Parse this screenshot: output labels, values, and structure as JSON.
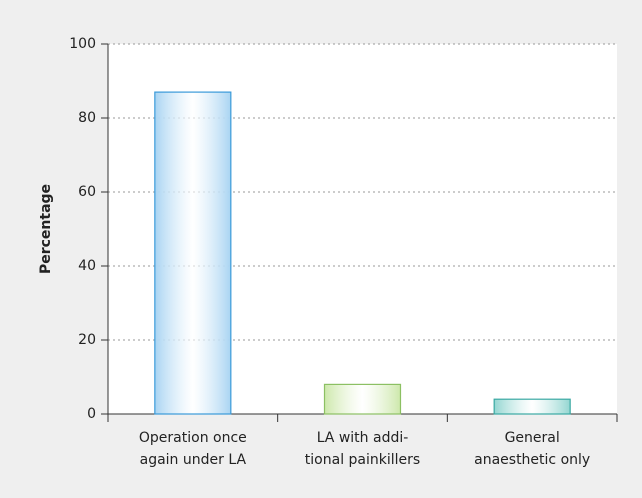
{
  "chart_data": {
    "type": "bar",
    "y_label": "Percentage",
    "categories": [
      [
        "Operation once",
        "again under LA"
      ],
      [
        "LA with addi-",
        "tional painkillers"
      ],
      [
        "General",
        "anaesthetic only"
      ]
    ],
    "values": [
      87,
      8,
      4
    ],
    "colors": [
      "#a9d4f2",
      "#cde8ab",
      "#93d6d1"
    ],
    "edge_colors": [
      "#3a9ad9",
      "#8cc063",
      "#3aa9a3"
    ],
    "ylim": [
      0,
      100
    ],
    "yticks": [
      0,
      20,
      40,
      60,
      80,
      100
    ],
    "grid": true
  }
}
